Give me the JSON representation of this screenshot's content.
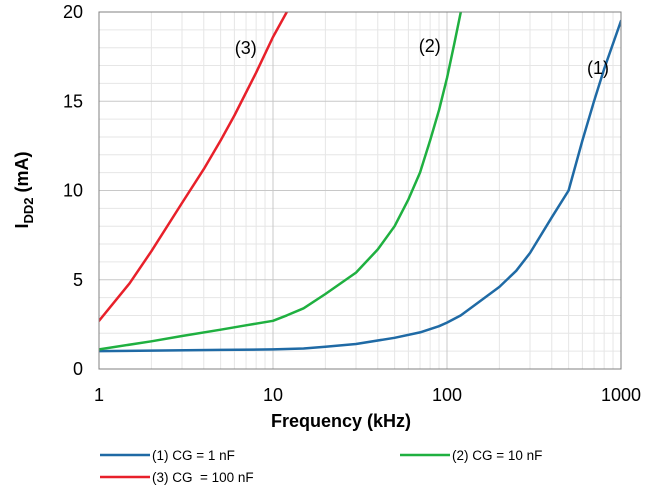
{
  "chart_data": {
    "type": "line",
    "title": "",
    "xlabel": "Frequency (kHz)",
    "ylabel": {
      "main": "I",
      "subscript": "DD2",
      "suffix": " (mA)"
    },
    "xscale": "log",
    "xlim": [
      1,
      1000
    ],
    "ylim": [
      0,
      20
    ],
    "xticks": [
      1,
      10,
      100,
      1000
    ],
    "xtick_labels": [
      "1",
      "10",
      "100",
      "1000"
    ],
    "yticks": [
      0,
      5,
      10,
      15,
      20
    ],
    "ytick_labels": [
      "0",
      "5",
      "10",
      "15",
      "20"
    ],
    "grid": true,
    "legend_position": "bottom",
    "series": [
      {
        "name": "(1) CG = 1 nF",
        "curve_label": "(1)",
        "color": "#1f6aa5",
        "x": [
          1,
          2,
          5,
          10,
          15,
          20,
          30,
          50,
          70,
          90,
          100,
          120,
          150,
          200,
          250,
          300,
          400,
          500,
          600,
          700,
          800,
          1000
        ],
        "y": [
          1.0,
          1.03,
          1.07,
          1.1,
          1.15,
          1.25,
          1.4,
          1.75,
          2.05,
          2.4,
          2.6,
          3.0,
          3.7,
          4.6,
          5.5,
          6.5,
          8.5,
          10.0,
          12.8,
          15.0,
          16.8,
          19.5
        ]
      },
      {
        "name": "(2) CG = 10 nF",
        "curve_label": "(2)",
        "color": "#1fb040",
        "x": [
          1,
          2,
          3,
          5,
          7,
          10,
          12,
          15,
          20,
          30,
          40,
          50,
          60,
          70,
          80,
          90,
          100,
          110,
          120
        ],
        "y": [
          1.1,
          1.55,
          1.85,
          2.2,
          2.45,
          2.7,
          3.0,
          3.4,
          4.2,
          5.4,
          6.7,
          8.0,
          9.5,
          11.0,
          12.8,
          14.5,
          16.3,
          18.2,
          20.0
        ]
      },
      {
        "name": "(3) CG  = 100 nF",
        "curve_label": "(3)",
        "color": "#e8202a",
        "x": [
          1,
          1.5,
          2,
          3,
          4,
          5,
          6,
          8,
          10,
          12
        ],
        "y": [
          2.7,
          4.8,
          6.6,
          9.3,
          11.2,
          12.8,
          14.2,
          16.6,
          18.6,
          20.0
        ]
      }
    ]
  }
}
